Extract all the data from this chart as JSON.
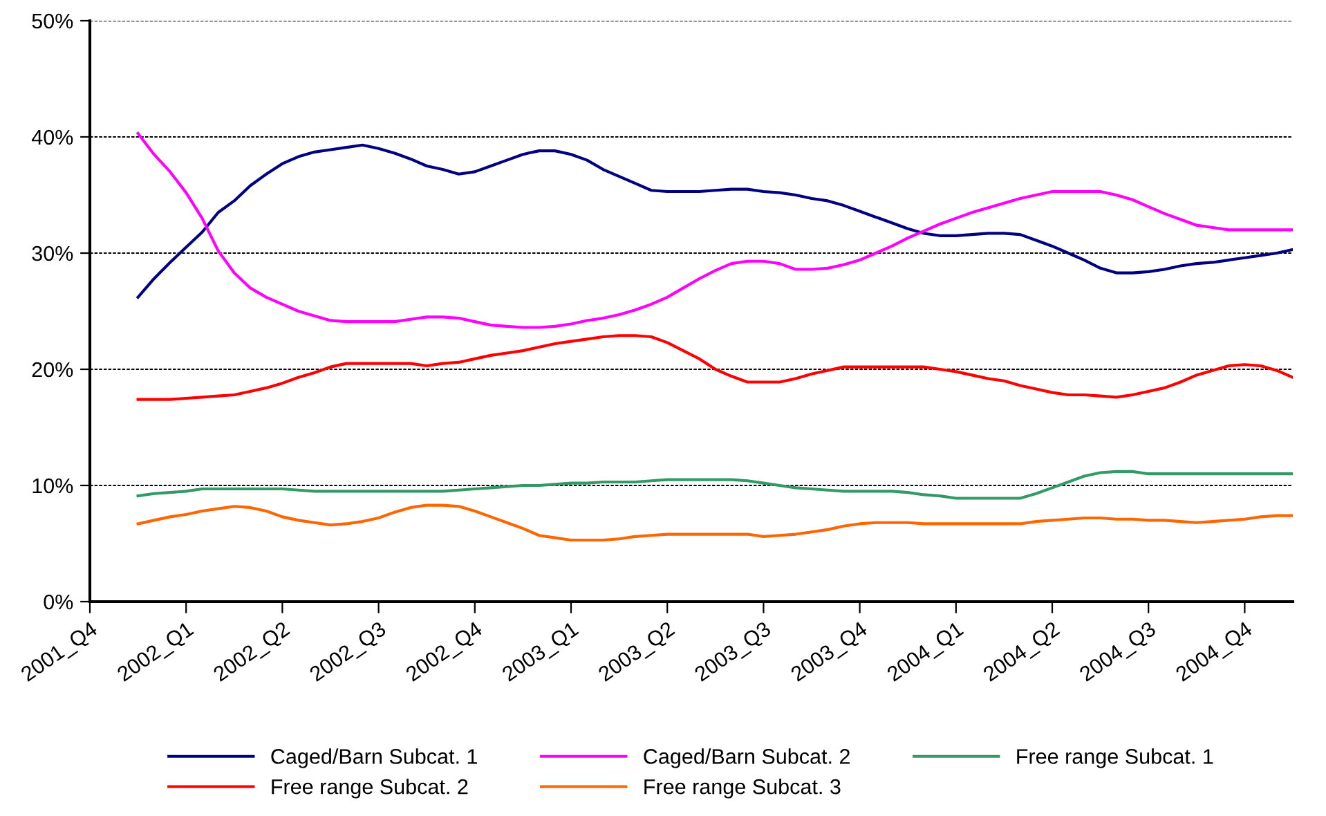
{
  "chart_data": {
    "type": "line",
    "categories": [
      "2001_Q4",
      null,
      null,
      null,
      null,
      null,
      "2002_Q1",
      null,
      null,
      null,
      null,
      null,
      "2002_Q2",
      null,
      null,
      null,
      null,
      null,
      "2002_Q3",
      null,
      null,
      null,
      null,
      null,
      "2002_Q4",
      null,
      null,
      null,
      null,
      null,
      "2003_Q1",
      null,
      null,
      null,
      null,
      null,
      "2003_Q2",
      null,
      null,
      null,
      null,
      null,
      "2003_Q3",
      null,
      null,
      null,
      null,
      null,
      "2003_Q4",
      null,
      null,
      null,
      null,
      null,
      "2004_Q1",
      null,
      null,
      null,
      null,
      null,
      "2004_Q2",
      null,
      null,
      null,
      null,
      null,
      "2004_Q3",
      null,
      null,
      null,
      null,
      null,
      "2004_Q4",
      null,
      null,
      null
    ],
    "series": [
      {
        "name": "Caged/Barn Subcat. 1",
        "color": "#000080",
        "values": [
          null,
          null,
          null,
          26.2,
          27.8,
          29.2,
          30.5,
          31.8,
          33.5,
          34.5,
          35.8,
          36.8,
          37.7,
          38.3,
          38.7,
          38.9,
          39.1,
          39.3,
          39.0,
          38.6,
          38.1,
          37.5,
          37.2,
          36.8,
          37.0,
          37.5,
          38.0,
          38.5,
          38.8,
          38.8,
          38.5,
          38.0,
          37.2,
          36.6,
          36.0,
          35.4,
          35.3,
          35.3,
          35.3,
          35.4,
          35.5,
          35.5,
          35.3,
          35.2,
          35.0,
          34.7,
          34.5,
          34.1,
          33.6,
          33.1,
          32.6,
          32.1,
          31.7,
          31.5,
          31.5,
          31.6,
          31.7,
          31.7,
          31.6,
          31.1,
          30.6,
          30.0,
          29.4,
          28.7,
          28.3,
          28.3,
          28.4,
          28.6,
          28.9,
          29.1,
          29.2,
          29.4,
          29.6,
          29.8,
          30.0,
          30.3
        ]
      },
      {
        "name": "Caged/Barn Subcat. 2",
        "color": "#ff00ff",
        "values": [
          null,
          null,
          null,
          40.3,
          38.5,
          37.0,
          35.2,
          33.0,
          30.2,
          28.3,
          27.0,
          26.2,
          25.6,
          25.0,
          24.6,
          24.2,
          24.1,
          24.1,
          24.1,
          24.1,
          24.3,
          24.5,
          24.5,
          24.4,
          24.1,
          23.8,
          23.7,
          23.6,
          23.6,
          23.7,
          23.9,
          24.2,
          24.4,
          24.7,
          25.1,
          25.6,
          26.2,
          27.0,
          27.8,
          28.5,
          29.1,
          29.3,
          29.3,
          29.1,
          28.6,
          28.6,
          28.7,
          29.0,
          29.4,
          30.0,
          30.6,
          31.3,
          31.9,
          32.5,
          33.0,
          33.5,
          33.9,
          34.3,
          34.7,
          35.0,
          35.3,
          35.3,
          35.3,
          35.3,
          35.0,
          34.6,
          34.0,
          33.4,
          32.9,
          32.4,
          32.2,
          32.0,
          32.0,
          32.0,
          32.0,
          32.0
        ]
      },
      {
        "name": "Free range Subcat. 1",
        "color": "#339966",
        "values": [
          null,
          null,
          null,
          9.1,
          9.3,
          9.4,
          9.5,
          9.7,
          9.7,
          9.7,
          9.7,
          9.7,
          9.7,
          9.6,
          9.5,
          9.5,
          9.5,
          9.5,
          9.5,
          9.5,
          9.5,
          9.5,
          9.5,
          9.6,
          9.7,
          9.8,
          9.9,
          10.0,
          10.0,
          10.1,
          10.2,
          10.2,
          10.3,
          10.3,
          10.3,
          10.4,
          10.5,
          10.5,
          10.5,
          10.5,
          10.5,
          10.4,
          10.2,
          10.0,
          9.8,
          9.7,
          9.6,
          9.5,
          9.5,
          9.5,
          9.5,
          9.4,
          9.2,
          9.1,
          8.9,
          8.9,
          8.9,
          8.9,
          8.9,
          9.3,
          9.8,
          10.3,
          10.8,
          11.1,
          11.2,
          11.2,
          11.0,
          11.0,
          11.0,
          11.0,
          11.0,
          11.0,
          11.0,
          11.0,
          11.0,
          11.0
        ]
      },
      {
        "name": "Free range Subcat. 2",
        "color": "#ff0000",
        "values": [
          null,
          null,
          null,
          17.4,
          17.4,
          17.4,
          17.5,
          17.6,
          17.7,
          17.8,
          18.1,
          18.4,
          18.8,
          19.3,
          19.7,
          20.2,
          20.5,
          20.5,
          20.5,
          20.5,
          20.5,
          20.3,
          20.5,
          20.6,
          20.9,
          21.2,
          21.4,
          21.6,
          21.9,
          22.2,
          22.4,
          22.6,
          22.8,
          22.9,
          22.9,
          22.8,
          22.3,
          21.6,
          20.9,
          20.0,
          19.4,
          18.9,
          18.9,
          18.9,
          19.2,
          19.6,
          19.9,
          20.2,
          20.2,
          20.2,
          20.2,
          20.2,
          20.2,
          20.0,
          19.8,
          19.5,
          19.2,
          19.0,
          18.6,
          18.3,
          18.0,
          17.8,
          17.8,
          17.7,
          17.6,
          17.8,
          18.1,
          18.4,
          18.9,
          19.5,
          19.9,
          20.3,
          20.4,
          20.3,
          19.9,
          19.3
        ]
      },
      {
        "name": "Free range Subcat. 3",
        "color": "#ff6600",
        "values": [
          null,
          null,
          null,
          6.7,
          7.0,
          7.3,
          7.5,
          7.8,
          8.0,
          8.2,
          8.1,
          7.8,
          7.3,
          7.0,
          6.8,
          6.6,
          6.7,
          6.9,
          7.2,
          7.7,
          8.1,
          8.3,
          8.3,
          8.2,
          7.8,
          7.3,
          6.8,
          6.3,
          5.7,
          5.5,
          5.3,
          5.3,
          5.3,
          5.4,
          5.6,
          5.7,
          5.8,
          5.8,
          5.8,
          5.8,
          5.8,
          5.8,
          5.6,
          5.7,
          5.8,
          6.0,
          6.2,
          6.5,
          6.7,
          6.8,
          6.8,
          6.8,
          6.7,
          6.7,
          6.7,
          6.7,
          6.7,
          6.7,
          6.7,
          6.9,
          7.0,
          7.1,
          7.2,
          7.2,
          7.1,
          7.1,
          7.0,
          7.0,
          6.9,
          6.8,
          6.9,
          7.0,
          7.1,
          7.3,
          7.4,
          7.4
        ]
      }
    ],
    "ylim": [
      0,
      50
    ],
    "yticks": [
      {
        "value": 0,
        "label": "0%"
      },
      {
        "value": 10,
        "label": "10%"
      },
      {
        "value": 20,
        "label": "20%"
      },
      {
        "value": 30,
        "label": "30%"
      },
      {
        "value": 40,
        "label": "40%"
      },
      {
        "value": 50,
        "label": "50%"
      }
    ],
    "grid": "y",
    "legend": "bottom",
    "marker": "none",
    "line_style": "solid"
  }
}
